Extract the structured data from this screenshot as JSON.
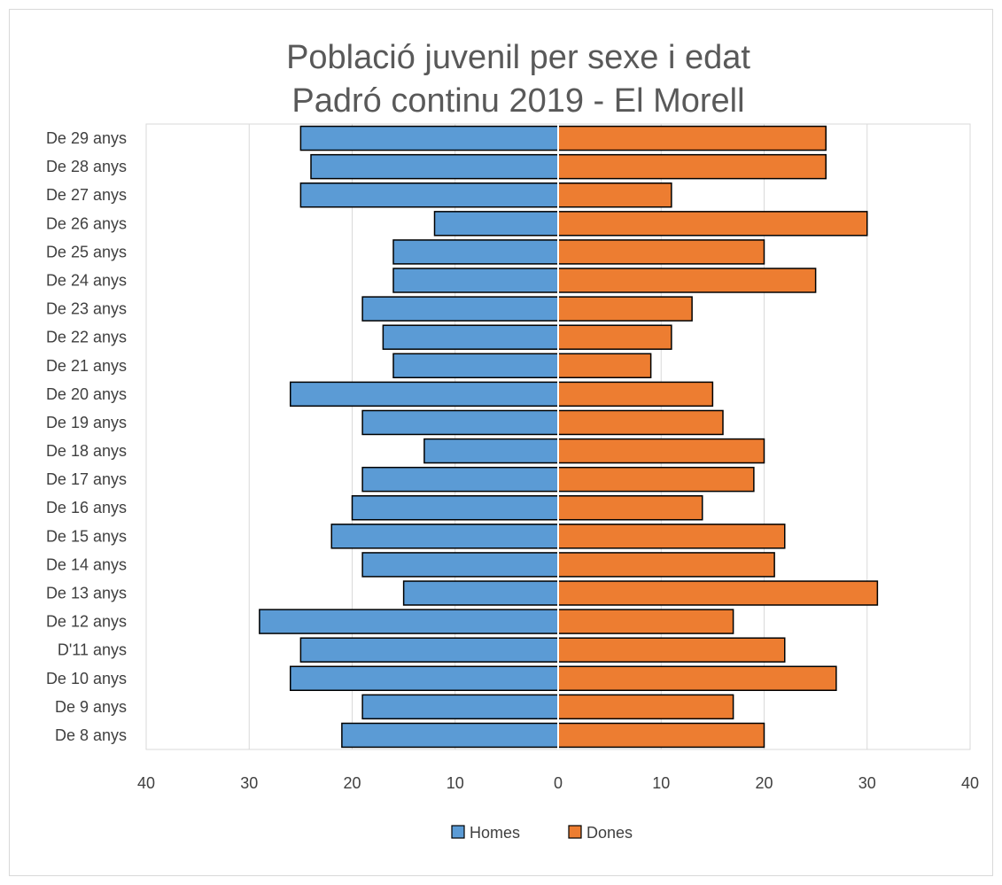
{
  "chart_data": {
    "type": "bar",
    "orientation": "horizontal",
    "layout": "population-pyramid",
    "title": [
      "Població juvenil per sexe i edat",
      "Padró continu 2019 - El Morell"
    ],
    "categories": [
      "De 29 anys",
      "De 28 anys",
      "De 27 anys",
      "De 26 anys",
      "De 25 anys",
      "De 24 anys",
      "De 23 anys",
      "De 22 anys",
      "De 21 anys",
      "De 20 anys",
      "De 19 anys",
      "De 18 anys",
      "De 17 anys",
      "De 16 anys",
      "De 15 anys",
      "De 14 anys",
      "De 13 anys",
      "De 12 anys",
      "D'11 anys",
      "De 10 anys",
      "De 9 anys",
      "De 8 anys"
    ],
    "series": [
      {
        "name": "Homes",
        "color": "#5b9bd5",
        "side": "left",
        "values": [
          25,
          24,
          25,
          12,
          16,
          16,
          19,
          17,
          16,
          26,
          19,
          13,
          19,
          20,
          22,
          19,
          15,
          29,
          25,
          26,
          19,
          21
        ]
      },
      {
        "name": "Dones",
        "color": "#ed7d31",
        "side": "right",
        "values": [
          26,
          26,
          11,
          30,
          20,
          25,
          13,
          11,
          9,
          15,
          16,
          20,
          19,
          14,
          22,
          21,
          31,
          17,
          22,
          27,
          17,
          20
        ]
      }
    ],
    "xlim": [
      -40,
      40
    ],
    "x_ticks": [
      -40,
      -30,
      -20,
      -10,
      0,
      10,
      20,
      30,
      40
    ],
    "x_tick_labels": [
      "40",
      "30",
      "20",
      "10",
      "0",
      "10",
      "20",
      "30",
      "40"
    ],
    "grid": true,
    "legend_position": "bottom",
    "bar_outline_color": "#000000"
  }
}
